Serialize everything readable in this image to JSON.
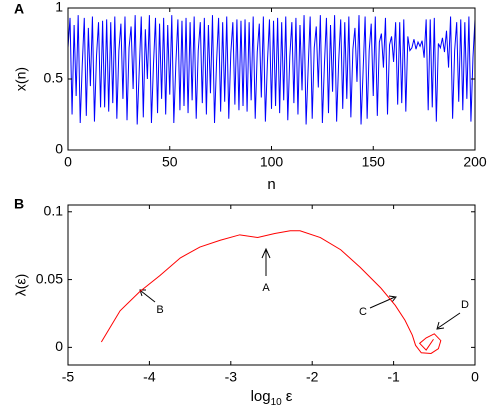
{
  "chart_data": [
    {
      "type": "line",
      "panel_label": "A",
      "xlabel": "n",
      "ylabel": "x(n)",
      "xlim": [
        0,
        200
      ],
      "xticks": [
        0,
        50,
        100,
        150,
        200
      ],
      "ylim": [
        0,
        1
      ],
      "yticks": [
        0,
        0.5,
        1
      ],
      "x": [
        0,
        1,
        2,
        3,
        4,
        5,
        6,
        7,
        8,
        9,
        10,
        11,
        12,
        13,
        14,
        15,
        16,
        17,
        18,
        19,
        20,
        21,
        22,
        23,
        24,
        25,
        26,
        27,
        28,
        29,
        30,
        31,
        32,
        33,
        34,
        35,
        36,
        37,
        38,
        39,
        40,
        41,
        42,
        43,
        44,
        45,
        46,
        47,
        48,
        49,
        50,
        51,
        52,
        53,
        54,
        55,
        56,
        57,
        58,
        59,
        60,
        61,
        62,
        63,
        64,
        65,
        66,
        67,
        68,
        69,
        70,
        71,
        72,
        73,
        74,
        75,
        76,
        77,
        78,
        79,
        80,
        81,
        82,
        83,
        84,
        85,
        86,
        87,
        88,
        89,
        90,
        91,
        92,
        93,
        94,
        95,
        96,
        97,
        98,
        99,
        100,
        101,
        102,
        103,
        104,
        105,
        106,
        107,
        108,
        109,
        110,
        111,
        112,
        113,
        114,
        115,
        116,
        117,
        118,
        119,
        120,
        121,
        122,
        123,
        124,
        125,
        126,
        127,
        128,
        129,
        130,
        131,
        132,
        133,
        134,
        135,
        136,
        137,
        138,
        139,
        140,
        141,
        142,
        143,
        144,
        145,
        146,
        147,
        148,
        149,
        150,
        151,
        152,
        153,
        154,
        155,
        156,
        157,
        158,
        159,
        160,
        161,
        162,
        163,
        164,
        165,
        166,
        167,
        168,
        169,
        170,
        171,
        172,
        173,
        174,
        175,
        176,
        177,
        178,
        179,
        180,
        181,
        182,
        183,
        184,
        185,
        186,
        187,
        188,
        189,
        190,
        191,
        192,
        193,
        194,
        195,
        196,
        197,
        198,
        199,
        200
      ],
      "series": [
        {
          "color": "#0000ff",
          "values": [
            0.72,
            0.93,
            0.25,
            0.88,
            0.38,
            0.95,
            0.19,
            0.6,
            0.93,
            0.24,
            0.86,
            0.45,
            0.94,
            0.2,
            0.66,
            0.9,
            0.3,
            0.91,
            0.3,
            0.92,
            0.27,
            0.9,
            0.33,
            0.94,
            0.22,
            0.7,
            0.89,
            0.36,
            0.94,
            0.21,
            0.72,
            0.87,
            0.43,
            0.95,
            0.18,
            0.56,
            0.94,
            0.23,
            0.85,
            0.5,
            0.95,
            0.19,
            0.6,
            0.93,
            0.26,
            0.89,
            0.36,
            0.93,
            0.25,
            0.88,
            0.39,
            0.95,
            0.19,
            0.61,
            0.92,
            0.28,
            0.91,
            0.31,
            0.93,
            0.26,
            0.9,
            0.35,
            0.94,
            0.22,
            0.7,
            0.9,
            0.33,
            0.93,
            0.25,
            0.88,
            0.4,
            0.95,
            0.19,
            0.62,
            0.93,
            0.27,
            0.9,
            0.34,
            0.94,
            0.22,
            0.68,
            0.9,
            0.32,
            0.92,
            0.28,
            0.91,
            0.31,
            0.92,
            0.27,
            0.9,
            0.35,
            0.94,
            0.22,
            0.69,
            0.89,
            0.37,
            0.94,
            0.2,
            0.62,
            0.92,
            0.29,
            0.91,
            0.31,
            0.93,
            0.26,
            0.9,
            0.35,
            0.94,
            0.21,
            0.66,
            0.9,
            0.33,
            0.93,
            0.25,
            0.88,
            0.42,
            0.95,
            0.18,
            0.57,
            0.94,
            0.22,
            0.72,
            0.87,
            0.44,
            0.95,
            0.19,
            0.6,
            0.93,
            0.26,
            0.88,
            0.41,
            0.95,
            0.2,
            0.62,
            0.92,
            0.29,
            0.9,
            0.36,
            0.94,
            0.23,
            0.71,
            0.86,
            0.48,
            0.95,
            0.18,
            0.55,
            0.94,
            0.22,
            0.7,
            0.89,
            0.38,
            0.94,
            0.24,
            0.76,
            0.82,
            0.58,
            0.93,
            0.25,
            0.74,
            0.8,
            0.62,
            0.9,
            0.32,
            0.9,
            0.33,
            0.92,
            0.27,
            0.8,
            0.7,
            0.72,
            0.78,
            0.71,
            0.76,
            0.73,
            0.77,
            0.65,
            0.92,
            0.28,
            0.92,
            0.3,
            0.93,
            0.2,
            0.75,
            0.72,
            0.79,
            0.69,
            0.84,
            0.58,
            0.94,
            0.22,
            0.7,
            0.9,
            0.34,
            0.92,
            0.28,
            0.9,
            0.36,
            0.94,
            0.2,
            0.65,
            0.92
          ]
        }
      ]
    },
    {
      "type": "line",
      "panel_label": "B",
      "xlabel": [
        "log",
        "10",
        "ε"
      ],
      "ylabel": "λ(ε)",
      "xlim": [
        -5,
        0
      ],
      "xticks": [
        -5,
        -4,
        -3,
        -2,
        -1,
        0
      ],
      "ylim": [
        -0.013,
        0.105
      ],
      "yticks": [
        0,
        0.05,
        0.1
      ],
      "x": [
        -4.59,
        -4.36,
        -4.12,
        -3.87,
        -3.62,
        -3.38,
        -3.13,
        -2.89,
        -2.67,
        -2.46,
        -2.27,
        -2.15,
        -1.9,
        -1.65,
        -1.41,
        -1.16,
        -0.98,
        -0.86,
        -0.77,
        -0.73,
        -0.66,
        -0.54,
        -0.45,
        -0.42,
        -0.5,
        -0.6,
        -0.68,
        -0.6,
        -0.51
      ],
      "series": [
        {
          "color": "#ff0000",
          "values": [
            0.004,
            0.027,
            0.041,
            0.053,
            0.066,
            0.074,
            0.079,
            0.083,
            0.081,
            0.084,
            0.086,
            0.086,
            0.081,
            0.072,
            0.059,
            0.044,
            0.031,
            0.02,
            0.009,
            0.0015,
            -0.004,
            -0.0045,
            -0.001,
            0.005,
            0.01,
            0.007,
            0.003,
            -0.002,
            0.006
          ]
        }
      ],
      "annotations": [
        "A",
        "B",
        "C",
        "D"
      ]
    }
  ]
}
